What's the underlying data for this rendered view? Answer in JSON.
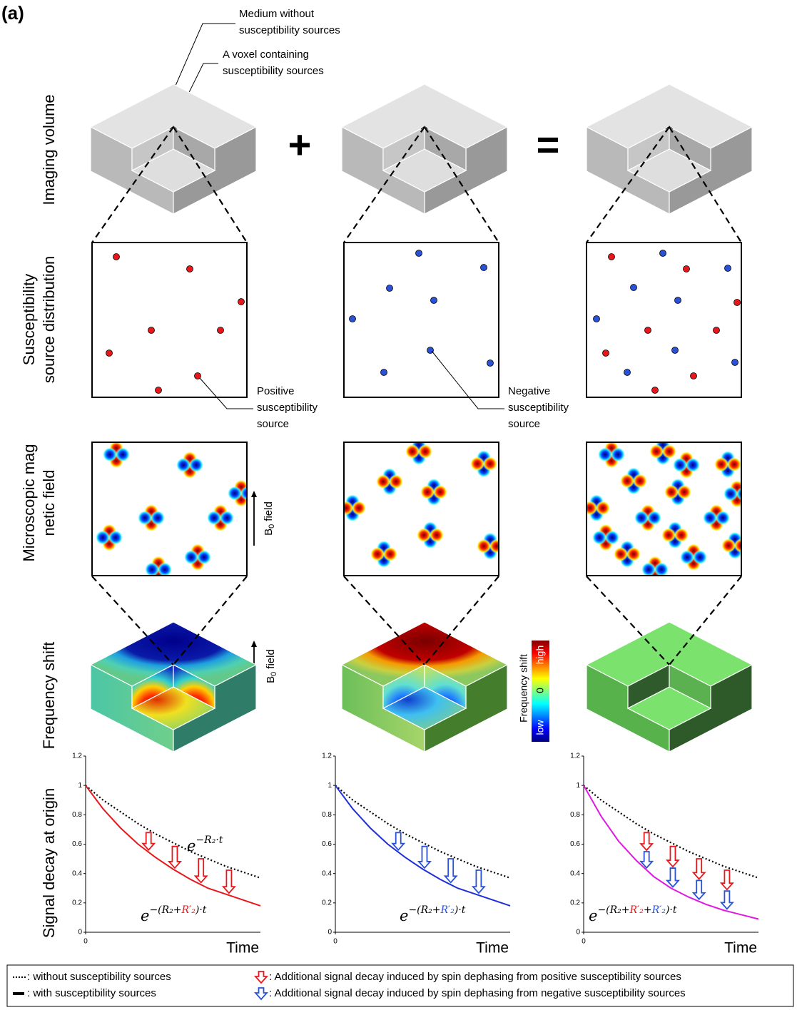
{
  "figure_label": "(a)",
  "annotations": {
    "medium": [
      "Medium without",
      "susceptibility sources"
    ],
    "voxel": [
      "A voxel containing",
      "susceptibility sources"
    ],
    "positive": [
      "Positive",
      "susceptibility",
      "source"
    ],
    "negative": [
      "Negative",
      "susceptibility",
      "source"
    ]
  },
  "operators": [
    "+",
    "="
  ],
  "row_labels": [
    [
      "Imaging volume"
    ],
    [
      "Susceptibility",
      "source distribution"
    ],
    [
      "Microscopic mag",
      "netic field"
    ],
    [
      "Frequency shift"
    ],
    [
      "Signal decay at origin"
    ]
  ],
  "b0_field": {
    "symbol": "B",
    "subscript": "0",
    "text": "field"
  },
  "colorbar": {
    "title": "Frequency shift",
    "labels": [
      "high",
      "0",
      "low"
    ]
  },
  "legend": [
    {
      "text": ": without susceptibility sources",
      "style": "dotted",
      "color": "#000000"
    },
    {
      "text": ": with susceptibility sources",
      "style": "solid",
      "color": "#000000"
    },
    {
      "text": ": Additional signal decay induced by spin dephasing from positive susceptibility sources",
      "style": "arrow",
      "color": "#e8171b"
    },
    {
      "text": ": Additional signal decay induced by spin dephasing from negative susceptibility sources",
      "style": "arrow",
      "color": "#2a52d8"
    }
  ],
  "chart_data": [
    {
      "type": "line",
      "x_label": "Time",
      "xlim": [
        0,
        1
      ],
      "xticks": [
        0
      ],
      "ylim": [
        0,
        1.2
      ],
      "yticks": [
        0,
        0.2,
        0.4,
        0.6,
        0.8,
        1,
        1.2
      ],
      "x": [
        0,
        0.1,
        0.2,
        0.3,
        0.4,
        0.5,
        0.6,
        0.7,
        0.8,
        0.9,
        1
      ],
      "series": [
        {
          "color": "#000000",
          "dash": "dotted",
          "values": [
            1,
            0.9,
            0.82,
            0.74,
            0.67,
            0.61,
            0.55,
            0.5,
            0.45,
            0.41,
            0.37
          ]
        },
        {
          "color": "#e8171b",
          "values": [
            1,
            0.84,
            0.71,
            0.6,
            0.51,
            0.43,
            0.36,
            0.3,
            0.26,
            0.22,
            0.18
          ]
        }
      ],
      "arrow_colors": [
        "#e8171b"
      ],
      "formulas": [
        {
          "base": "e",
          "exponent": [
            {
              "text": "−R₂·t"
            }
          ]
        },
        {
          "base": "e",
          "exponent": [
            {
              "text": "−(R₂+"
            },
            {
              "text": "R′₂",
              "color": "#e8171b"
            },
            {
              "text": ")·t"
            }
          ]
        }
      ]
    },
    {
      "type": "line",
      "x_label": "Time",
      "xlim": [
        0,
        1
      ],
      "xticks": [
        0
      ],
      "ylim": [
        0,
        1.2
      ],
      "yticks": [
        0,
        0.2,
        0.4,
        0.6,
        0.8,
        1,
        1.2
      ],
      "x": [
        0,
        0.1,
        0.2,
        0.3,
        0.4,
        0.5,
        0.6,
        0.7,
        0.8,
        0.9,
        1
      ],
      "series": [
        {
          "color": "#000000",
          "dash": "dotted",
          "values": [
            1,
            0.9,
            0.82,
            0.74,
            0.67,
            0.61,
            0.55,
            0.5,
            0.45,
            0.41,
            0.37
          ]
        },
        {
          "color": "#1f2fd8",
          "values": [
            1,
            0.84,
            0.71,
            0.6,
            0.51,
            0.43,
            0.36,
            0.3,
            0.26,
            0.22,
            0.18
          ]
        }
      ],
      "arrow_colors": [
        "#2a52d8"
      ],
      "formulas": [
        {
          "base": "e",
          "exponent": [
            {
              "text": "−(R₂+"
            },
            {
              "text": "R′₂",
              "color": "#2a52d8"
            },
            {
              "text": ")·t"
            }
          ]
        }
      ]
    },
    {
      "type": "line",
      "x_label": "Time",
      "xlim": [
        0,
        1
      ],
      "xticks": [
        0
      ],
      "ylim": [
        0,
        1.2
      ],
      "yticks": [
        0,
        0.2,
        0.4,
        0.6,
        0.8,
        1,
        1.2
      ],
      "x": [
        0,
        0.1,
        0.2,
        0.3,
        0.4,
        0.5,
        0.6,
        0.7,
        0.8,
        0.9,
        1
      ],
      "series": [
        {
          "color": "#000000",
          "dash": "dotted",
          "values": [
            1,
            0.9,
            0.82,
            0.74,
            0.67,
            0.61,
            0.55,
            0.5,
            0.45,
            0.41,
            0.37
          ]
        },
        {
          "color": "#e018e0",
          "values": [
            1,
            0.79,
            0.62,
            0.49,
            0.38,
            0.3,
            0.24,
            0.19,
            0.15,
            0.12,
            0.09
          ]
        }
      ],
      "arrow_colors": [
        "#e8171b",
        "#2a52d8"
      ],
      "formulas": [
        {
          "base": "e",
          "exponent": [
            {
              "text": "−(R₂+"
            },
            {
              "text": "R′₂",
              "color": "#e8171b"
            },
            {
              "text": "+"
            },
            {
              "text": "R′₂",
              "color": "#2a52d8"
            },
            {
              "text": ")·t"
            }
          ]
        }
      ]
    }
  ]
}
